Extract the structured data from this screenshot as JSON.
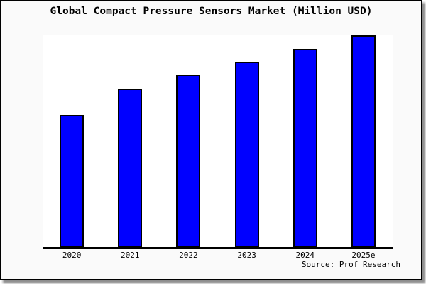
{
  "title": "Global Compact Pressure Sensors Market (Million USD)",
  "source_credit": "Source: Prof Research",
  "colors": {
    "bar_fill": "#0000ff",
    "bar_border": "#000000",
    "frame_border": "#000000",
    "frame_background": "#fafafa",
    "plot_background": "#ffffff",
    "axis_line": "#000000",
    "shadow": "#737373"
  },
  "chart_data": {
    "type": "bar",
    "title": "Global Compact Pressure Sensors Market (Million USD)",
    "categories": [
      "2020",
      "2021",
      "2022",
      "2023",
      "2024",
      "2025e"
    ],
    "values": [
      62.8,
      75.0,
      81.5,
      87.5,
      93.5,
      100.0
    ],
    "xlabel": "",
    "ylabel": "",
    "ylim": [
      0,
      100.3
    ],
    "grid": false,
    "legend": false,
    "y_axis_ticks_visible": false,
    "values_note": "No y-axis labels shown in image; values are bar heights estimated from pixels, normalized to 2025e = 100",
    "annotations": [
      "Source: Prof Research"
    ]
  }
}
